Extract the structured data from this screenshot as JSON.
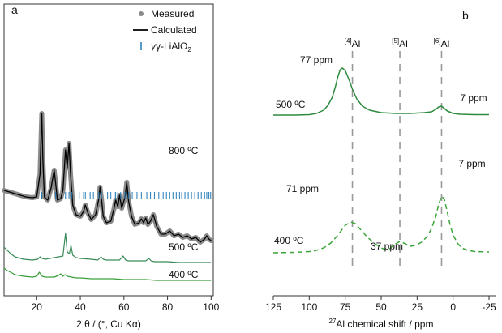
{
  "colors": {
    "axis": "#333333",
    "measured": "#8a8a8a",
    "calculated": "#000000",
    "ticks_ref": "#1f7ab8",
    "green_500": "#3a8a5a",
    "green_400": "#3aa03a",
    "nmr_500": "#2e8b3e",
    "nmr_400": "#3aa53a",
    "guide": "#999999"
  },
  "chart_data": [
    {
      "panel": "a",
      "type": "line",
      "panel_label": "a",
      "xlabel": "2 θ / (°, Cu Kα)",
      "ylabel": "",
      "xlim": [
        5,
        101
      ],
      "xticks": [
        20,
        40,
        60,
        80,
        100
      ],
      "legend": {
        "placement": "top-right",
        "entries": [
          {
            "label": "Measured",
            "marker": "dot"
          },
          {
            "label": "Calculated",
            "marker": "line"
          },
          {
            "label_prefix": "γ-LiAlO",
            "label_sub": "2",
            "marker": "tick"
          }
        ]
      },
      "series": [
        {
          "name": "800 °C",
          "label": "800 ºC",
          "style": "measured+calculated",
          "offset": 130,
          "x": [
            5,
            10,
            15,
            18,
            20,
            21.5,
            22.3,
            22.8,
            23.5,
            25,
            26.5,
            28,
            28.7,
            29.5,
            31,
            32,
            33.2,
            34,
            34.8,
            35.5,
            36.5,
            38,
            40,
            41.5,
            42.3,
            43.5,
            45,
            47,
            48.5,
            49,
            49.7,
            50.5,
            52,
            54,
            55.5,
            56.2,
            57.2,
            58,
            59,
            60.5,
            61.3,
            62.2,
            63.5,
            65,
            67,
            68,
            69,
            70,
            71,
            72.2,
            73.5,
            75,
            77,
            79,
            81,
            83,
            85,
            87,
            89,
            91,
            93,
            95,
            97,
            98,
            99,
            100
          ],
          "y": [
            0,
            -4,
            -8,
            -9,
            -8,
            20,
            95,
            40,
            -8,
            -12,
            2,
            25,
            8,
            -12,
            -10,
            0,
            50,
            28,
            58,
            20,
            -18,
            -30,
            -32,
            -26,
            -18,
            -28,
            -36,
            -30,
            -10,
            4,
            -10,
            -32,
            -40,
            -38,
            -22,
            -12,
            -20,
            -6,
            -22,
            -8,
            10,
            -14,
            -32,
            -42,
            -40,
            -35,
            -40,
            -34,
            -42,
            -38,
            -30,
            -44,
            -54,
            -54,
            -50,
            -56,
            -54,
            -58,
            -56,
            -60,
            -58,
            -64,
            -60,
            -56,
            -60,
            -62
          ]
        },
        {
          "name": "500 °C",
          "label": "500 ºC",
          "style": "line",
          "offset": 42,
          "x": [
            5,
            6.5,
            8,
            10,
            14,
            18,
            20.5,
            21.5,
            22.5,
            24,
            26,
            28,
            30,
            32,
            33.2,
            34,
            35,
            35.7,
            36.5,
            38,
            40,
            45,
            48,
            49.5,
            50.5,
            52,
            55,
            58,
            59.6,
            60.8,
            62,
            65,
            70,
            71.5,
            72.5,
            74,
            80,
            85,
            90,
            95,
            100
          ],
          "y": [
            18,
            14,
            10,
            6,
            3,
            2,
            3,
            6,
            4,
            3,
            4,
            5,
            6,
            7,
            35,
            12,
            10,
            20,
            8,
            5,
            4,
            3,
            2,
            6,
            3,
            2,
            2,
            2,
            7,
            2,
            1,
            1,
            1,
            4,
            1,
            0,
            0,
            -1,
            -1,
            -1,
            -1
          ]
        },
        {
          "name": "400 °C",
          "label": "400 ºC",
          "style": "line",
          "offset": 20,
          "x": [
            5,
            6.5,
            8,
            10,
            14,
            18,
            20,
            21.2,
            22.5,
            24,
            26,
            28,
            30,
            31,
            32,
            33,
            34,
            36,
            38,
            40,
            45,
            50,
            55,
            60,
            65,
            70,
            75,
            80,
            85,
            90,
            95,
            100
          ],
          "y": [
            14,
            11,
            9,
            6,
            4,
            3,
            4,
            9,
            4,
            3,
            3,
            3,
            5,
            7,
            4,
            6,
            4,
            3,
            2,
            2,
            1,
            1,
            1,
            0,
            0,
            0,
            -1,
            -1,
            -1,
            -1,
            -1,
            -1
          ]
        }
      ],
      "reference_ticks": {
        "name": "γ-LiAlO2",
        "positions": [
          22.3,
          28.7,
          33.2,
          34.8,
          36.0,
          39.5,
          41.5,
          42.3,
          44.5,
          46.0,
          48.5,
          49.7,
          52.5,
          54.0,
          55.5,
          56.2,
          57.2,
          58.5,
          60.5,
          61.3,
          62.2,
          63.8,
          66.0,
          68.0,
          69.2,
          70.5,
          72.2,
          74.0,
          76.0,
          78.0,
          79.5,
          81.0,
          82.5,
          84.0,
          85.5,
          86.5,
          88.0,
          89.5,
          91.0,
          92.5,
          94.0,
          95.5,
          97.0,
          98.0,
          99.0,
          99.8
        ]
      }
    },
    {
      "panel": "b",
      "type": "line",
      "panel_label": "b",
      "xlabel_prefix": "27",
      "xlabel_main": "Al chemical shift / ppm",
      "ylabel": "",
      "xlim": [
        125,
        -25
      ],
      "xticks": [
        125,
        100,
        75,
        50,
        25,
        0,
        -25
      ],
      "xtick_labels": [
        "125",
        "100",
        "75",
        "50",
        "25",
        "0",
        "-25"
      ],
      "site_labels": [
        {
          "sup": "[4]",
          "text": "Al",
          "ppm": 70
        },
        {
          "sup": "[5]",
          "text": "Al",
          "ppm": 37
        },
        {
          "sup": "[6]",
          "text": "Al",
          "ppm": 8
        }
      ],
      "series": [
        {
          "name": "500 °C",
          "label": "500 ºC",
          "dash": "solid",
          "x": [
            125,
            110,
            100,
            95,
            90,
            87,
            84,
            82,
            80,
            78.5,
            77,
            75,
            72,
            70,
            67,
            63,
            58,
            50,
            40,
            30,
            20,
            15,
            12,
            10,
            8,
            6,
            4,
            0,
            -5,
            -15,
            -25
          ],
          "y": [
            0,
            0,
            0.5,
            2,
            6,
            12,
            22,
            34,
            48,
            56,
            58,
            55,
            42,
            32,
            20,
            11,
            6,
            3,
            2,
            2,
            3,
            4,
            7,
            10,
            11,
            8,
            5,
            2,
            1,
            0.5,
            0.5
          ],
          "peak_labels": [
            {
              "text": "77 ppm",
              "ppm": 77
            },
            {
              "text": "7 ppm",
              "ppm": 7
            }
          ]
        },
        {
          "name": "400 °C",
          "label": "400 ºC",
          "dash": "dashed",
          "x": [
            125,
            110,
            100,
            95,
            90,
            85,
            80,
            75,
            71,
            68,
            64,
            60,
            55,
            50,
            47,
            44,
            41,
            37,
            33,
            30,
            26,
            22,
            18,
            15,
            12,
            10,
            8,
            6,
            4,
            2,
            0,
            -3,
            -6,
            -10,
            -15,
            -25
          ],
          "y": [
            0,
            0.5,
            1.5,
            3,
            6,
            12,
            22,
            34,
            38,
            36,
            28,
            20,
            12,
            6,
            4,
            5,
            10,
            14,
            11,
            8,
            9,
            13,
            20,
            30,
            45,
            60,
            70,
            66,
            50,
            34,
            22,
            12,
            6,
            3,
            1.5,
            1
          ],
          "peak_labels": [
            {
              "text": "71 ppm",
              "ppm": 71
            },
            {
              "text": "37 ppm",
              "ppm": 37
            },
            {
              "text": "7 ppm",
              "ppm": 7
            }
          ]
        }
      ]
    }
  ]
}
